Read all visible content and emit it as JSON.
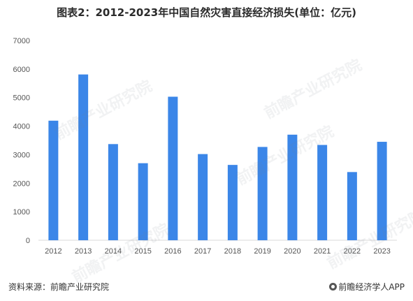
{
  "title": "图表2：2012-2023年中国自然灾害直接经济损失(单位：亿元)",
  "source": "资料来源：前瞻产业研究院",
  "brand": "前瞻经济学人APP",
  "watermark": "前瞻产业研究院",
  "colors": {
    "bar": "#3b86e8",
    "axis": "#d9d9d9",
    "text": "#555555"
  },
  "chart_data": {
    "type": "bar",
    "categories": [
      "2012",
      "2013",
      "2014",
      "2015",
      "2016",
      "2017",
      "2018",
      "2019",
      "2020",
      "2021",
      "2022",
      "2023"
    ],
    "values": [
      4190,
      5810,
      3370,
      2700,
      5030,
      3020,
      2640,
      3270,
      3700,
      3340,
      2390,
      3450
    ],
    "ylim": [
      0,
      7000
    ],
    "yticks": [
      "0",
      "1000",
      "2000",
      "3000",
      "4000",
      "5000",
      "6000",
      "7000"
    ],
    "grid": false,
    "legend": "none"
  }
}
